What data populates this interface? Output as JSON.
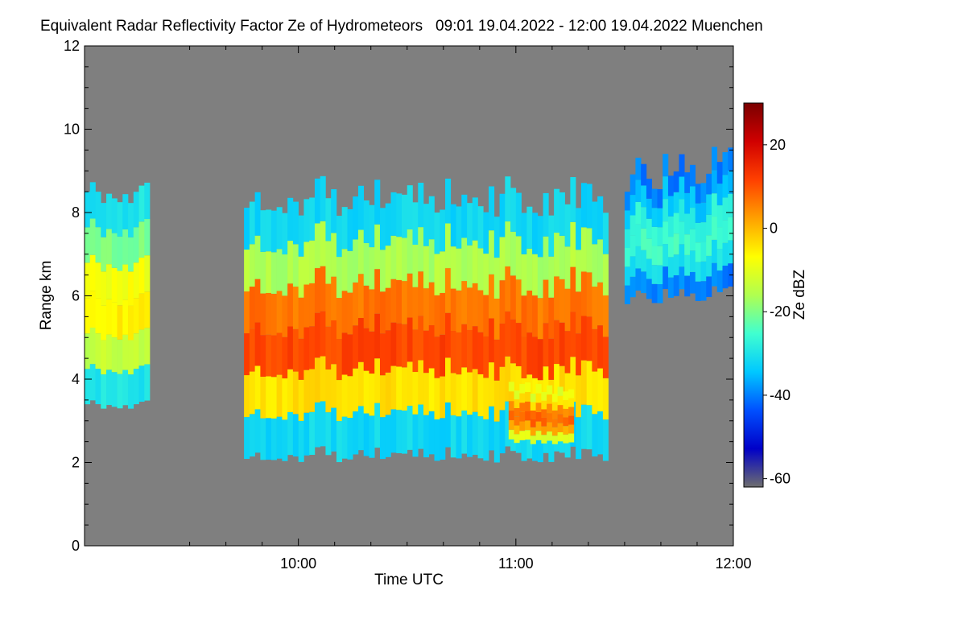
{
  "chart_data": {
    "type": "heatmap",
    "title": "Equivalent Radar Reflectivity Factor Ze of Hydrometeors   09:01 19.04.2022 - 12:00 19.04.2022 Muenchen",
    "xlabel": "Time UTC",
    "ylabel": "Range km",
    "colorbar_label": "Ze dBZ",
    "x_range": [
      "09:01",
      "12:00"
    ],
    "x_ticks": [
      "10:00",
      "11:00",
      "12:00"
    ],
    "y_range": [
      0,
      12
    ],
    "y_ticks": [
      "0",
      "2",
      "4",
      "6",
      "8",
      "10",
      "12"
    ],
    "colorbar_range": [
      -62,
      30
    ],
    "colorbar_ticks": [
      "20",
      "0",
      "-20",
      "-40",
      "-60"
    ],
    "colorbar_tick_values": [
      20,
      0,
      -20,
      -40,
      -60
    ],
    "colormap": [
      "#6e6e6e",
      "#0000c8",
      "#0050ff",
      "#00c8ff",
      "#40ffd0",
      "#b0ff50",
      "#ffff00",
      "#ffa000",
      "#ff4000",
      "#d00000",
      "#7a0000"
    ],
    "background_color": "#7f7f7f",
    "features": {
      "main_cloud": {
        "start": "09:45",
        "end": "11:25",
        "base_km": 2.2,
        "top_km": 8.4,
        "peak_dbz": 12
      },
      "second_cell": {
        "start": "10:58",
        "end": "11:15",
        "base_km": 2.5,
        "top_km": 3.8,
        "peak_dbz": 8
      },
      "early_layer": {
        "start": "09:01",
        "end": "09:18",
        "base_km": 3.4,
        "top_km": 8.5,
        "peak_dbz": -5
      },
      "upper_clouds": {
        "start": "11:30",
        "end": "12:00",
        "base_km": 6.0,
        "top_km": 9.0,
        "peak_dbz": -25
      }
    }
  }
}
